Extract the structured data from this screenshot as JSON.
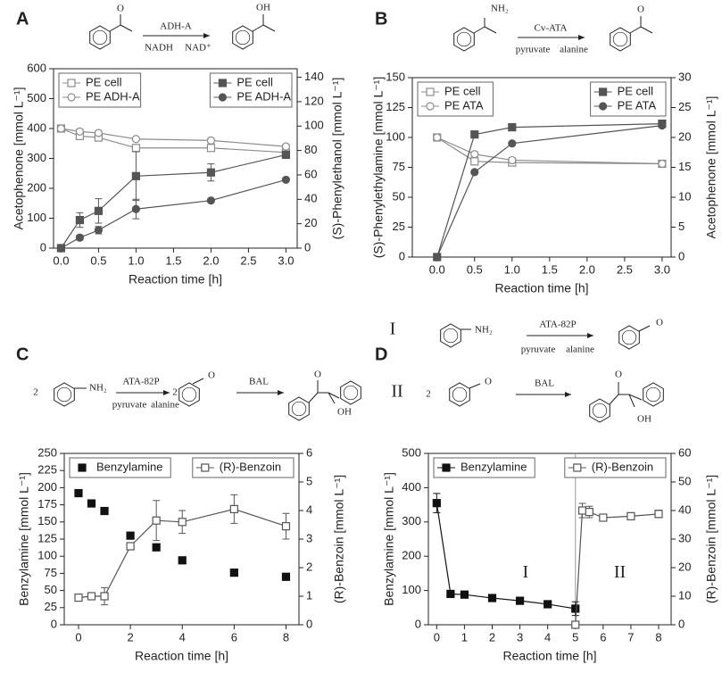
{
  "chart_data": [
    {
      "type": "line",
      "panel": "A",
      "xlabel": "Reaction time [h]",
      "ylabel": "Acetophenone [mmol L⁻¹]",
      "y2label": "(S)-Phenylethanol [mmol L⁻¹]",
      "xlim": [
        -0.1,
        3.15
      ],
      "xticks": [
        {
          "value": 0,
          "label": "0.0"
        },
        0.5,
        {
          "value": 1,
          "label": "1.0"
        },
        1.5,
        {
          "value": 2,
          "label": "2.0"
        },
        2.5,
        {
          "value": 3,
          "label": "3.0"
        }
      ],
      "ylim": [
        0,
        600
      ],
      "yticks": [
        0,
        100,
        200,
        300,
        400,
        500,
        600
      ],
      "y2lim": [
        0,
        147
      ],
      "y2ticks": [
        0,
        20,
        40,
        60,
        80,
        100,
        120,
        140
      ],
      "legend": {
        "y": "upper left",
        "y2": "upper right"
      },
      "series": [
        {
          "name": "PE cell",
          "marker": "square",
          "filled": false,
          "color": "#8c8c8c",
          "x": [
            0,
            0.25,
            0.5,
            1,
            2,
            3
          ],
          "values": [
            400,
            375,
            370,
            335,
            335,
            320
          ],
          "errors": [
            5,
            8,
            8,
            5,
            5,
            5
          ]
        },
        {
          "name": "PE ADH-A",
          "marker": "circle",
          "filled": false,
          "color": "#8c8c8c",
          "x": [
            0,
            0.25,
            0.5,
            1,
            2,
            3
          ],
          "values": [
            400,
            390,
            385,
            365,
            360,
            340
          ],
          "errors": [
            null,
            8,
            8,
            5,
            8,
            8
          ]
        },
        {
          "name": "PE cell",
          "marker": "square",
          "filled": true,
          "color": "#555555",
          "axis": "y2",
          "x": [
            0,
            0.25,
            0.5,
            1,
            2,
            3
          ],
          "values": [
            0,
            23,
            30.5,
            59,
            62,
            76.5
          ],
          "errors": [
            null,
            6,
            10,
            20,
            7,
            3
          ]
        },
        {
          "name": "PE ADH-A",
          "marker": "circle",
          "filled": true,
          "color": "#555555",
          "axis": "y2",
          "x": [
            0,
            0.25,
            0.5,
            1,
            2,
            3
          ],
          "values": [
            0,
            8.6,
            14.7,
            32,
            39,
            56
          ],
          "errors": [
            null,
            2,
            3,
            8,
            1,
            1
          ]
        }
      ]
    },
    {
      "type": "line",
      "panel": "B",
      "xlabel": "Reaction time [h]",
      "ylabel": "(S)-Phenylethylamine [mmol L⁻¹]",
      "y2label": "Acetophenone [mmol L⁻¹]",
      "xlim": [
        -0.33,
        3.12
      ],
      "xticks": [
        {
          "value": 0,
          "label": "0.0"
        },
        0.5,
        {
          "value": 1,
          "label": "1.0"
        },
        1.5,
        {
          "value": 2,
          "label": "2.0"
        },
        2.5,
        {
          "value": 3,
          "label": "3.0"
        }
      ],
      "ylim": [
        0,
        150
      ],
      "yticks": [
        0,
        25,
        50,
        75,
        100,
        125,
        150
      ],
      "y2lim": [
        0,
        30
      ],
      "y2ticks": [
        0,
        5,
        10,
        15,
        20,
        25,
        30
      ],
      "legend": {
        "y": "upper left",
        "y2": "upper right"
      },
      "series": [
        {
          "name": "PE cell",
          "marker": "square",
          "filled": false,
          "color": "#8c8c8c",
          "x": [
            0,
            0.5,
            1,
            3
          ],
          "values": [
            100,
            80,
            79,
            78
          ],
          "errors": [
            null,
            3,
            2,
            2
          ]
        },
        {
          "name": "PE ATA",
          "marker": "circle",
          "filled": false,
          "color": "#8c8c8c",
          "x": [
            0,
            0.5,
            1,
            3
          ],
          "values": [
            100,
            86,
            81,
            78
          ],
          "errors": [
            null,
            2,
            2,
            1
          ]
        },
        {
          "name": "PE cell",
          "marker": "square",
          "filled": true,
          "color": "#555555",
          "axis": "y2",
          "x": [
            0,
            0.5,
            1,
            3
          ],
          "values": [
            0,
            20.5,
            21.7,
            22.3
          ],
          "errors": [
            null,
            null,
            null,
            null
          ]
        },
        {
          "name": "PE ATA",
          "marker": "circle",
          "filled": true,
          "color": "#555555",
          "axis": "y2",
          "x": [
            0,
            0.5,
            1,
            3
          ],
          "values": [
            0,
            14.2,
            19,
            22
          ],
          "errors": [
            null,
            null,
            null,
            null
          ]
        }
      ]
    },
    {
      "type": "line",
      "panel": "C",
      "xlabel": "Reaction time [h]",
      "ylabel": "Benzylamine [mmol L⁻¹]",
      "y2label": "(R)-Benzoin [mmol L⁻¹]",
      "xlim": [
        -0.55,
        8.5
      ],
      "xticks": [
        0,
        2,
        4,
        6,
        8
      ],
      "ylim": [
        0,
        250
      ],
      "yticks": [
        0,
        25,
        50,
        75,
        100,
        125,
        150,
        175,
        200,
        225,
        250
      ],
      "y2lim": [
        0,
        6
      ],
      "y2ticks": [
        0,
        1,
        2,
        3,
        4,
        5,
        6
      ],
      "legend": {
        "y": "upper left",
        "y2": "upper right"
      },
      "series": [
        {
          "name": "Benzylamine",
          "marker": "square",
          "filled": true,
          "line": false,
          "color": "#111111",
          "x": [
            0,
            0.5,
            1,
            2,
            3,
            4,
            6,
            8
          ],
          "values": [
            192,
            177,
            166,
            130,
            113,
            94,
            76,
            70
          ],
          "errors": [
            null,
            null,
            null,
            null,
            null,
            null,
            null,
            null
          ]
        },
        {
          "name": "(R)-Benzoin",
          "marker": "square",
          "filled": false,
          "color": "#555555",
          "axis": "y2",
          "x": [
            0,
            0.5,
            1,
            2,
            3,
            4,
            6,
            8
          ],
          "values": [
            0.95,
            1.0,
            1.0,
            2.75,
            3.65,
            3.6,
            4.05,
            3.45
          ],
          "errors": [
            0.05,
            0.1,
            0.3,
            0.1,
            0.7,
            0.4,
            0.5,
            0.45
          ]
        }
      ]
    },
    {
      "type": "line",
      "panel": "D",
      "xlabel": "Reaction time [h]",
      "ylabel": "Benzylamine [mmol L⁻¹]",
      "y2label": "(R)-Benzoin [mmol L⁻¹]",
      "xlim": [
        -0.3,
        8.45
      ],
      "xticks": [
        0,
        1,
        2,
        3,
        4,
        5,
        6,
        7,
        8
      ],
      "ylim": [
        0,
        500
      ],
      "yticks": [
        0,
        100,
        200,
        300,
        400,
        500
      ],
      "y2lim": [
        0,
        60
      ],
      "y2ticks": [
        0,
        10,
        20,
        30,
        40,
        50,
        60
      ],
      "vline": 5,
      "annotations": [
        "I",
        "II"
      ],
      "legend": {
        "y": "upper left",
        "y2": "upper right"
      },
      "series": [
        {
          "name": "Benzylamine",
          "marker": "square",
          "filled": true,
          "color": "#111111",
          "x": [
            0,
            0.5,
            1,
            2,
            3,
            4,
            5
          ],
          "values": [
            355,
            90,
            88,
            78,
            70,
            60,
            47
          ],
          "errors": [
            28,
            null,
            null,
            null,
            null,
            null,
            20
          ]
        },
        {
          "name": "(R)-Benzoin",
          "marker": "square",
          "filled": false,
          "color": "#555555",
          "axis": "y2",
          "x": [
            5,
            5.25,
            5.5,
            6,
            7,
            8
          ],
          "values": [
            0,
            40,
            39.5,
            37.5,
            38,
            38.8
          ],
          "errors": [
            null,
            2.5,
            2,
            1,
            1,
            1.3
          ]
        }
      ]
    }
  ],
  "schemes": [
    {
      "texts": [
        "O",
        "ADH-A",
        "NADH",
        "NAD⁺",
        "OH"
      ]
    },
    {
      "texts": [
        "NH₂",
        "Cv-ATA",
        "pyruvate",
        "alanine",
        "O"
      ]
    },
    {
      "texts": [
        "2",
        "NH₂",
        "ATA-82P",
        "pyruvate",
        "alanine",
        "2",
        "O",
        "BAL",
        "O",
        "OH"
      ]
    },
    {
      "texts": [
        "I",
        "NH₂",
        "ATA-82P",
        "pyruvate",
        "alanine",
        "O",
        "II",
        "2",
        "O",
        "BAL",
        "O",
        "OH"
      ]
    }
  ]
}
